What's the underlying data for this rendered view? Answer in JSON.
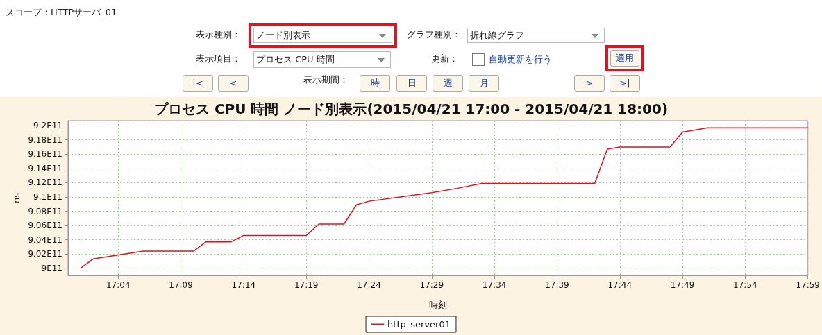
{
  "chart_data": {
    "type": "line",
    "title": "プロセス CPU 時間 ノード別表示(2015/04/21 17:00 - 2015/04/21 18:00)",
    "xlabel": "時刻",
    "ylabel": "ns",
    "annotations": [
      "スコープ：HTTPサーバ_01",
      "表示種別：",
      "ノード別表示",
      "グラフ種別：",
      "折れ線グラフ",
      "表示項目：",
      "プロセス CPU 時間",
      "更新：",
      "自動更新を行う",
      "適用",
      "|<",
      "<",
      "表示期間：",
      "時",
      "日",
      "週",
      "月",
      ">",
      ">|"
    ],
    "x": [
      "2015-04-21T17:01",
      "2015-04-21T17:02",
      "2015-04-21T17:06",
      "2015-04-21T17:10",
      "2015-04-21T17:11",
      "2015-04-21T17:13",
      "2015-04-21T17:14",
      "2015-04-21T17:19",
      "2015-04-21T17:20",
      "2015-04-21T17:22",
      "2015-04-21T17:23",
      "2015-04-21T17:24",
      "2015-04-21T17:29",
      "2015-04-21T17:31",
      "2015-04-21T17:33",
      "2015-04-21T17:42",
      "2015-04-21T17:43",
      "2015-04-21T17:44",
      "2015-04-21T17:48",
      "2015-04-21T17:49",
      "2015-04-21T17:51",
      "2015-04-21T17:59"
    ],
    "series": [
      {
        "name": "http_server01",
        "color": "#e3101e",
        "values": [
          900000000000,
          901300000000,
          902400000000,
          902400000000,
          903700000000,
          903700000000,
          904600000000,
          904600000000,
          906200000000,
          906200000000,
          908900000000,
          909400000000,
          910600000000,
          911200000000,
          911900000000,
          911900000000,
          916700000000,
          917000000000,
          917000000000,
          919100000000,
          919700000000,
          919700000000
        ]
      }
    ],
    "xlim": [
      "2015-04-21T17:00",
      "2015-04-21T17:59"
    ],
    "xticks": [
      {
        "value": "2015-04-21T17:04",
        "label": "17:04"
      },
      {
        "value": "2015-04-21T17:09",
        "label": "17:09"
      },
      {
        "value": "2015-04-21T17:14",
        "label": "17:14"
      },
      {
        "value": "2015-04-21T17:19",
        "label": "17:19"
      },
      {
        "value": "2015-04-21T17:24",
        "label": "17:24"
      },
      {
        "value": "2015-04-21T17:29",
        "label": "17:29"
      },
      {
        "value": "2015-04-21T17:34",
        "label": "17:34"
      },
      {
        "value": "2015-04-21T17:39",
        "label": "17:39"
      },
      {
        "value": "2015-04-21T17:44",
        "label": "17:44"
      },
      {
        "value": "2015-04-21T17:49",
        "label": "17:49"
      },
      {
        "value": "2015-04-21T17:54",
        "label": "17:54"
      },
      {
        "value": "2015-04-21T17:59",
        "label": "17:59"
      }
    ],
    "ylim": [
      899000000000,
      920700000000
    ],
    "yticks": [
      {
        "value": 900000000000,
        "label": "9E11"
      },
      {
        "value": 902000000000,
        "label": "9.02E11"
      },
      {
        "value": 904000000000,
        "label": "9.04E11"
      },
      {
        "value": 906000000000,
        "label": "9.06E11"
      },
      {
        "value": 908000000000,
        "label": "9.08E11"
      },
      {
        "value": 910000000000,
        "label": "9.1E11"
      },
      {
        "value": 912000000000,
        "label": "9.12E11"
      },
      {
        "value": 914000000000,
        "label": "9.14E11"
      },
      {
        "value": 916000000000,
        "label": "9.16E11"
      },
      {
        "value": 918000000000,
        "label": "9.18E11"
      },
      {
        "value": 920000000000,
        "label": "9.2E11"
      }
    ],
    "grid": true,
    "legend": "bottom",
    "marker": "none",
    "line_style": "solid"
  }
}
